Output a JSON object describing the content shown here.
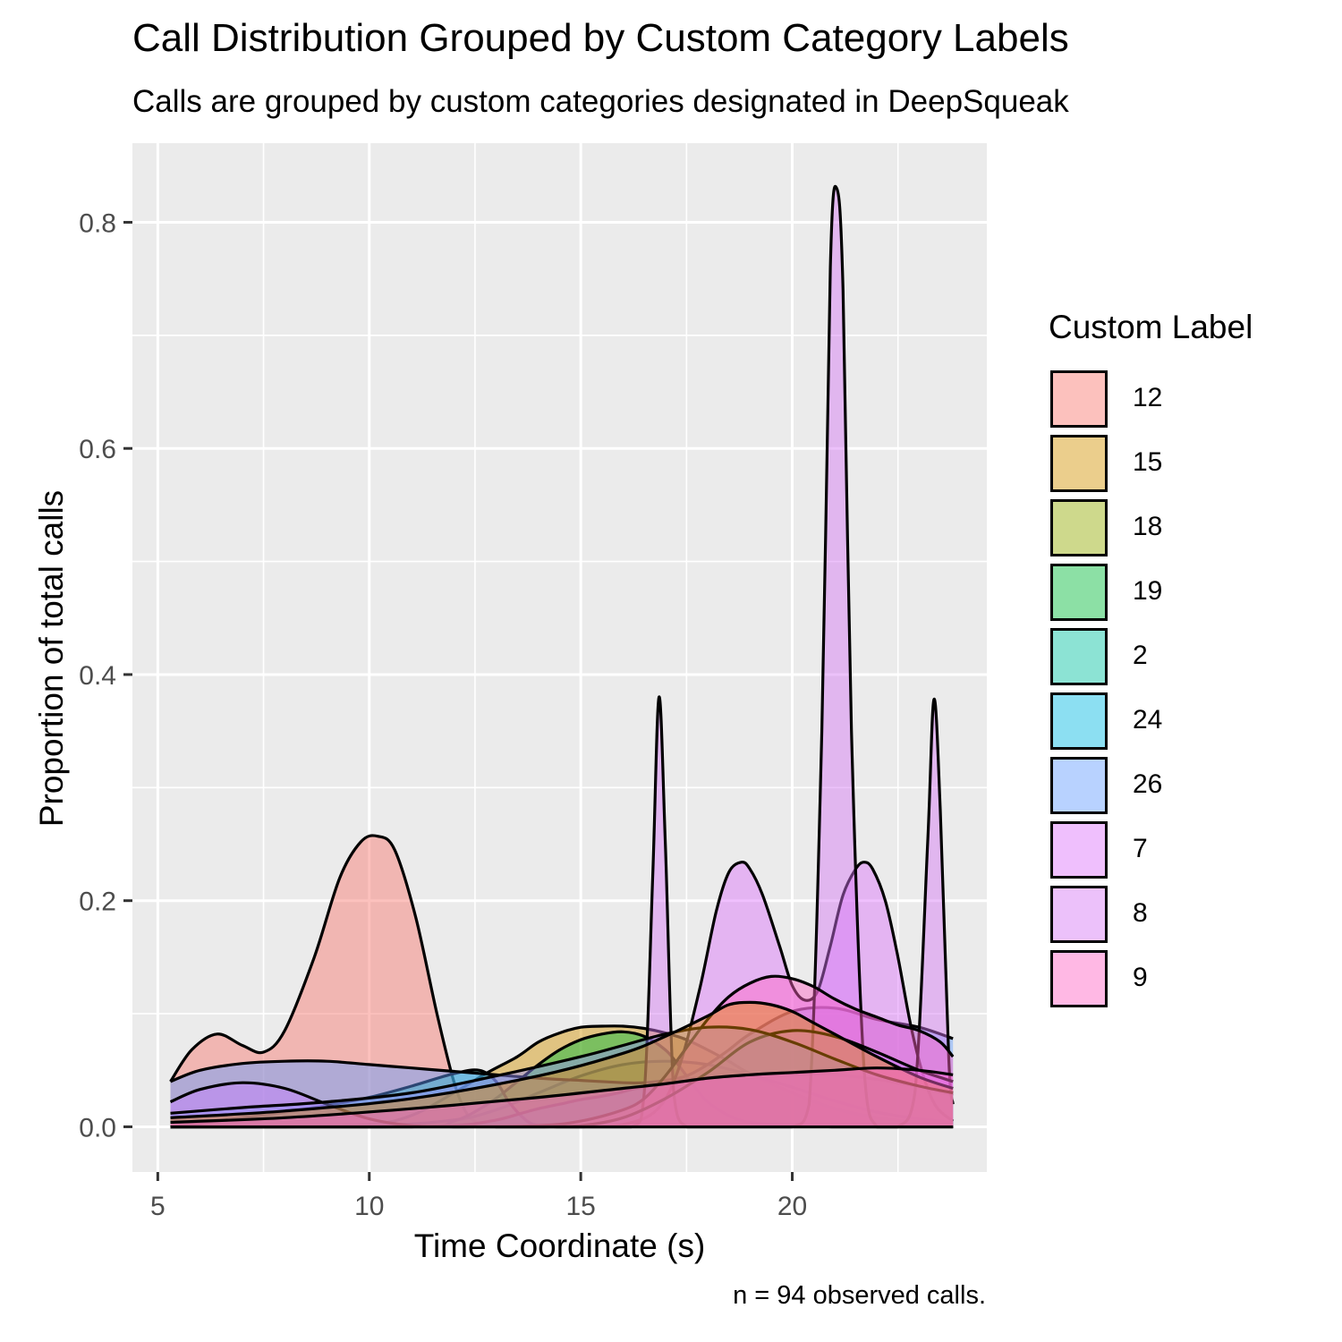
{
  "chart_data": {
    "type": "area",
    "title": "Call Distribution Grouped by Custom Category Labels",
    "subtitle": "Calls are grouped by custom categories designated in DeepSqueak",
    "caption": "n = 94 observed calls.",
    "xlabel": "Time Coordinate (s)",
    "ylabel": "Proportion of total calls",
    "xlim": [
      4.4,
      24.6
    ],
    "ylim": [
      -0.04,
      0.87
    ],
    "x_ticks": [
      5,
      10,
      15,
      20
    ],
    "y_ticks": [
      0.0,
      0.2,
      0.4,
      0.6,
      0.8
    ],
    "x_tick_labels": [
      "5",
      "10",
      "15",
      "20"
    ],
    "y_tick_labels": [
      "0.0",
      "0.2",
      "0.4",
      "0.6",
      "0.8"
    ],
    "grid": true,
    "legend_title": "Custom Label",
    "legend_position": "right",
    "series": [
      {
        "name": "12",
        "color": "#F8766D",
        "x": [
          5.3,
          5.8,
          6.4,
          7.0,
          7.5,
          8.0,
          8.7,
          9.3,
          9.8,
          10.2,
          10.6,
          11.1,
          11.6,
          12.0,
          12.3,
          12.6,
          13.0,
          13.5,
          14.0,
          15.0,
          16.0,
          18.0,
          20.0,
          22.0,
          23.8
        ],
        "y": [
          0.04,
          0.068,
          0.082,
          0.072,
          0.066,
          0.085,
          0.15,
          0.22,
          0.252,
          0.257,
          0.245,
          0.185,
          0.1,
          0.04,
          0.012,
          0.003,
          0.0,
          0.0,
          0.0,
          0.0,
          0.0,
          0.0,
          0.0,
          0.0,
          0.0
        ]
      },
      {
        "name": "15",
        "color": "#D39200",
        "x": [
          5.3,
          8.0,
          10.0,
          11.0,
          12.0,
          12.8,
          13.5,
          14.0,
          14.5,
          15.0,
          15.5,
          16.0,
          16.5,
          17.0,
          17.5,
          18.0,
          18.5,
          19.0,
          20.0,
          21.0,
          22.0,
          23.0,
          23.8
        ],
        "y": [
          0.0,
          0.0,
          0.002,
          0.01,
          0.03,
          0.048,
          0.062,
          0.075,
          0.083,
          0.088,
          0.089,
          0.089,
          0.087,
          0.083,
          0.077,
          0.068,
          0.058,
          0.047,
          0.03,
          0.016,
          0.008,
          0.004,
          0.002
        ]
      },
      {
        "name": "18",
        "color": "#93AA00",
        "x": [
          5.3,
          10.0,
          12.0,
          13.0,
          14.0,
          15.0,
          16.0,
          17.0,
          18.0,
          19.0,
          20.0,
          21.0,
          22.0,
          23.0,
          23.8
        ],
        "y": [
          0.0,
          0.001,
          0.006,
          0.015,
          0.03,
          0.045,
          0.055,
          0.058,
          0.055,
          0.046,
          0.035,
          0.023,
          0.013,
          0.007,
          0.004
        ]
      },
      {
        "name": "19",
        "color": "#00BA38",
        "x": [
          5.3,
          11.0,
          12.0,
          12.8,
          13.5,
          14.0,
          14.5,
          15.0,
          15.5,
          16.0,
          16.5,
          17.0,
          17.3,
          17.7,
          18.0,
          18.5,
          19.0,
          20.0,
          21.0,
          22.0,
          23.8
        ],
        "y": [
          0.0,
          0.0,
          0.005,
          0.02,
          0.04,
          0.055,
          0.068,
          0.077,
          0.082,
          0.084,
          0.08,
          0.068,
          0.055,
          0.035,
          0.022,
          0.01,
          0.004,
          0.001,
          0.0,
          0.0,
          0.0
        ]
      },
      {
        "name": "2",
        "color": "#00C19F",
        "x": [
          5.3,
          6.0,
          7.0,
          8.0,
          9.0,
          10.0,
          11.0,
          12.0,
          12.6,
          13.0,
          13.3,
          13.7,
          14.0,
          14.5,
          15.0,
          18.0,
          23.8
        ],
        "y": [
          0.0,
          0.003,
          0.008,
          0.013,
          0.019,
          0.026,
          0.036,
          0.047,
          0.05,
          0.04,
          0.022,
          0.006,
          0.001,
          0.0,
          0.0,
          0.0,
          0.0
        ]
      },
      {
        "name": "24",
        "color": "#00B9E3",
        "x": [
          5.3,
          8.0,
          10.0,
          12.0,
          13.0,
          13.6,
          14.0,
          14.5,
          15.0,
          15.5,
          15.9,
          16.2,
          16.6,
          17.0,
          17.5,
          18.0,
          19.0,
          20.0,
          21.0,
          22.0,
          23.0,
          23.8
        ],
        "y": [
          0.0,
          0.0,
          0.0,
          0.001,
          0.006,
          0.012,
          0.016,
          0.02,
          0.024,
          0.027,
          0.03,
          0.033,
          0.036,
          0.039,
          0.042,
          0.044,
          0.046,
          0.047,
          0.046,
          0.042,
          0.035,
          0.028
        ]
      },
      {
        "name": "26",
        "color": "#619CFF",
        "x": [
          5.3,
          6.0,
          7.0,
          8.0,
          9.0,
          10.0,
          11.0,
          12.0,
          13.0,
          14.0,
          15.0,
          16.0,
          16.5,
          17.0,
          17.5,
          18.0,
          18.5,
          19.0,
          20.0,
          21.0,
          22.0,
          23.0,
          23.8
        ],
        "y": [
          0.04,
          0.05,
          0.056,
          0.058,
          0.058,
          0.055,
          0.052,
          0.049,
          0.046,
          0.043,
          0.041,
          0.039,
          0.039,
          0.041,
          0.045,
          0.055,
          0.068,
          0.082,
          0.102,
          0.105,
          0.095,
          0.088,
          0.078
        ]
      },
      {
        "name": "7",
        "color": "#DB72FB",
        "x": [
          5.3,
          8.0,
          12.0,
          15.0,
          16.0,
          16.8,
          17.3,
          17.8,
          18.2,
          18.5,
          18.8,
          19.0,
          19.3,
          19.7,
          20.0,
          20.3,
          20.6,
          20.9,
          21.2,
          21.5,
          21.7,
          21.9,
          22.2,
          22.5,
          22.8,
          23.1,
          23.4,
          23.8
        ],
        "y": [
          0.0,
          0.0,
          0.0,
          0.0,
          0.002,
          0.015,
          0.05,
          0.12,
          0.19,
          0.225,
          0.234,
          0.228,
          0.205,
          0.16,
          0.125,
          0.112,
          0.12,
          0.16,
          0.205,
          0.228,
          0.234,
          0.228,
          0.2,
          0.15,
          0.09,
          0.045,
          0.018,
          0.005
        ]
      },
      {
        "name": "8",
        "color": "#D576F4",
        "x": [
          5.3,
          8.0,
          12.0,
          15.0,
          16.2,
          16.5,
          16.7,
          16.85,
          17.0,
          17.2,
          17.5,
          18.0,
          19.0,
          20.0,
          20.4,
          20.7,
          20.9,
          21.05,
          21.2,
          21.4,
          21.7,
          22.0,
          22.5,
          22.9,
          23.2,
          23.35,
          23.5,
          23.7,
          23.8
        ],
        "y": [
          0.0,
          0.0,
          0.0,
          0.0,
          0.0,
          0.03,
          0.22,
          0.38,
          0.25,
          0.03,
          0.0,
          0.0,
          0.0,
          0.0,
          0.02,
          0.35,
          0.76,
          0.83,
          0.74,
          0.35,
          0.05,
          0.0,
          0.0,
          0.03,
          0.25,
          0.378,
          0.28,
          0.06,
          0.02
        ]
      },
      {
        "name": "9",
        "color": "#FF61C3",
        "x": [
          5.3,
          8.0,
          12.0,
          14.0,
          15.0,
          16.0,
          16.5,
          17.0,
          17.5,
          18.0,
          18.5,
          19.0,
          19.5,
          20.0,
          20.5,
          21.0,
          21.5,
          22.0,
          22.5,
          23.0,
          23.5,
          23.8
        ],
        "y": [
          0.0,
          0.0,
          0.0,
          0.001,
          0.005,
          0.015,
          0.025,
          0.045,
          0.07,
          0.095,
          0.115,
          0.127,
          0.133,
          0.131,
          0.124,
          0.113,
          0.104,
          0.097,
          0.09,
          0.085,
          0.075,
          0.062
        ]
      },
      {
        "name": "",
        "color": "#C77CFF",
        "x": [
          5.3,
          6.0,
          7.0,
          8.0,
          9.0,
          10.0,
          11.0,
          12.0,
          12.5,
          13.0,
          14.0,
          15.0,
          16.0,
          17.0,
          18.0,
          19.0,
          20.0,
          21.0,
          22.0,
          23.0,
          23.8
        ],
        "y": [
          0.022,
          0.033,
          0.039,
          0.034,
          0.02,
          0.007,
          0.001,
          0.0,
          0.0,
          0.0,
          0.0,
          0.001,
          0.008,
          0.025,
          0.048,
          0.075,
          0.085,
          0.08,
          0.066,
          0.05,
          0.04
        ]
      },
      {
        "name": "",
        "color": "#9590FF",
        "x": [
          5.3,
          7.0,
          9.0,
          11.0,
          13.0,
          15.0,
          16.0,
          17.0,
          18.0,
          19.0,
          20.0,
          21.0,
          22.0,
          23.0,
          23.8
        ],
        "y": [
          0.012,
          0.017,
          0.022,
          0.03,
          0.045,
          0.062,
          0.072,
          0.082,
          0.088,
          0.086,
          0.075,
          0.06,
          0.046,
          0.036,
          0.03
        ]
      },
      {
        "name": "",
        "color": "#E58700",
        "x": [
          5.3,
          8.0,
          11.0,
          14.0,
          16.0,
          17.0,
          18.0,
          18.5,
          19.0,
          19.5,
          20.0,
          20.5,
          21.0,
          22.0,
          23.0,
          23.8
        ],
        "y": [
          0.008,
          0.014,
          0.025,
          0.045,
          0.065,
          0.08,
          0.098,
          0.108,
          0.11,
          0.108,
          0.102,
          0.092,
          0.082,
          0.062,
          0.044,
          0.034
        ]
      },
      {
        "name": "",
        "color": "#FD61D1",
        "x": [
          5.3,
          8.0,
          11.0,
          14.0,
          16.0,
          17.0,
          18.0,
          19.0,
          20.0,
          21.0,
          22.0,
          23.0,
          23.8
        ],
        "y": [
          0.004,
          0.008,
          0.016,
          0.026,
          0.034,
          0.038,
          0.043,
          0.046,
          0.048,
          0.05,
          0.052,
          0.05,
          0.046
        ]
      }
    ]
  }
}
